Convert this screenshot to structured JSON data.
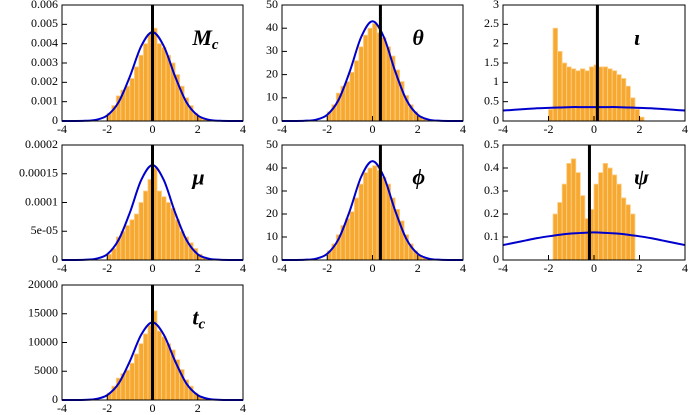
{
  "chart_data": [
    {
      "type": "histogram",
      "label": "M",
      "label_sub": "c",
      "bins": [
        -2,
        -1.8,
        -1.6,
        -1.4,
        -1.2,
        -1,
        -0.8,
        -0.6,
        -0.4,
        -0.2,
        0,
        0.2,
        0.4,
        0.6,
        0.8,
        1,
        1.2,
        1.4,
        1.6,
        1.8,
        2,
        2.2,
        2.4
      ],
      "values": [
        0.0004,
        0.0008,
        0.0013,
        0.0016,
        0.0018,
        0.0022,
        0.0028,
        0.0034,
        0.004,
        0.0045,
        0.0048,
        0.004,
        0.0038,
        0.0034,
        0.003,
        0.0024,
        0.0018,
        0.0012,
        0.0008,
        0.0004,
        0.0002,
        0.0001
      ],
      "color": "#f7a830",
      "line": {
        "x": [
          -4,
          -3.5,
          -3,
          -2.5,
          -2,
          -1.5,
          -1,
          -0.5,
          0,
          0.5,
          1,
          1.5,
          2,
          2.5,
          3,
          3.5,
          4
        ],
        "values": [
          0,
          1e-06,
          1e-05,
          6e-05,
          0.00029,
          0.00097,
          0.0023,
          0.00387,
          0.0046,
          0.00387,
          0.0023,
          0.00097,
          0.00029,
          6e-05,
          1e-05,
          1e-06,
          0
        ],
        "color": "#0000cc"
      },
      "marker_x": 0,
      "xlim": [
        -4,
        4
      ],
      "xticks": [
        -4,
        -2,
        0,
        2,
        4
      ],
      "ylim": [
        0,
        0.006
      ],
      "yticks": [
        0,
        0.001,
        0.002,
        0.003,
        0.004,
        0.005,
        0.006
      ]
    },
    {
      "type": "histogram",
      "label": "θ",
      "bins": [
        -2,
        -1.8,
        -1.6,
        -1.4,
        -1.2,
        -1,
        -0.8,
        -0.6,
        -0.4,
        -0.2,
        0,
        0.2,
        0.4,
        0.6,
        0.8,
        1,
        1.2,
        1.4,
        1.6,
        1.8,
        2,
        2.2,
        2.4
      ],
      "values": [
        4,
        7,
        12,
        15,
        17,
        21,
        26,
        32,
        37,
        40,
        42,
        38,
        36,
        32,
        28,
        22,
        17,
        11,
        7,
        4,
        2,
        1
      ],
      "color": "#f7a830",
      "line": {
        "x": [
          -4,
          -3.5,
          -3,
          -2.5,
          -2,
          -1.5,
          -1,
          -0.5,
          0,
          0.5,
          1,
          1.5,
          2,
          2.5,
          3,
          3.5,
          4
        ],
        "values": [
          0,
          0.01,
          0.09,
          0.57,
          2.7,
          9.1,
          21.5,
          36.2,
          43,
          36.2,
          21.5,
          9.1,
          2.7,
          0.57,
          0.09,
          0.01,
          0
        ],
        "color": "#0000cc"
      },
      "marker_x": 0.35,
      "xlim": [
        -4,
        4
      ],
      "xticks": [
        -4,
        -2,
        0,
        2,
        4
      ],
      "ylim": [
        0,
        50
      ],
      "yticks": [
        0,
        10,
        20,
        30,
        40,
        50
      ]
    },
    {
      "type": "histogram",
      "label": "ι",
      "bins": [
        -2,
        -1.8,
        -1.6,
        -1.4,
        -1.2,
        -1,
        -0.8,
        -0.6,
        -0.4,
        -0.2,
        0,
        0.2,
        0.4,
        0.6,
        0.8,
        1,
        1.2,
        1.4,
        1.6,
        1.8,
        2,
        2.2,
        2.4
      ],
      "values": [
        0.3,
        2.4,
        1.8,
        1.5,
        1.4,
        1.35,
        1.3,
        1.35,
        1.3,
        1.4,
        1.45,
        1.4,
        1.4,
        1.35,
        1.3,
        1.2,
        1.1,
        0.9,
        0.6,
        0.3,
        0.1,
        0
      ],
      "color": "#f7a830",
      "line": {
        "x": [
          -4,
          -3.5,
          -3,
          -2.5,
          -2,
          -1.5,
          -1,
          -0.5,
          0,
          0.5,
          1,
          1.5,
          2,
          2.5,
          3,
          3.5,
          4
        ],
        "values": [
          0.27,
          0.29,
          0.31,
          0.33,
          0.34,
          0.35,
          0.36,
          0.36,
          0.36,
          0.36,
          0.36,
          0.35,
          0.34,
          0.33,
          0.31,
          0.29,
          0.27
        ],
        "color": "#0000cc"
      },
      "marker_x": 0.15,
      "xlim": [
        -4,
        4
      ],
      "xticks": [
        -4,
        -2,
        0,
        2,
        4
      ],
      "ylim": [
        0,
        3
      ],
      "yticks": [
        0,
        0.5,
        1,
        1.5,
        2,
        2.5,
        3
      ]
    },
    {
      "type": "histogram",
      "label": "μ",
      "bins": [
        -2,
        -1.8,
        -1.6,
        -1.4,
        -1.2,
        -1,
        -0.8,
        -0.6,
        -0.4,
        -0.2,
        0,
        0.2,
        0.4,
        0.6,
        0.8,
        1,
        1.2,
        1.4,
        1.6,
        1.8,
        2,
        2.2,
        2.4
      ],
      "values": [
        1e-05,
        2e-05,
        4e-05,
        5e-05,
        6e-05,
        7e-05,
        8e-05,
        0.0001,
        0.00012,
        0.00014,
        0.00016,
        0.00012,
        0.00011,
        0.0001,
        9e-05,
        7e-05,
        5e-05,
        4e-05,
        3e-05,
        2e-05,
        1e-05,
        5e-06
      ],
      "color": "#f7a830",
      "line": {
        "x": [
          -4,
          -3.5,
          -3,
          -2.5,
          -2,
          -1.5,
          -1,
          -0.5,
          0,
          0.5,
          1,
          1.5,
          2,
          2.5,
          3,
          3.5,
          4
        ],
        "values": [
          0,
          4e-08,
          4e-07,
          2.2e-06,
          1e-05,
          3.5e-05,
          8.25e-05,
          0.000139,
          0.000165,
          0.000139,
          8.25e-05,
          3.5e-05,
          1e-05,
          2.2e-06,
          4e-07,
          4e-08,
          0
        ],
        "color": "#0000cc"
      },
      "marker_x": 0,
      "xlim": [
        -4,
        4
      ],
      "xticks": [
        -4,
        -2,
        0,
        2,
        4
      ],
      "ylim": [
        0,
        0.0002
      ],
      "yticks": [
        0,
        {
          "value": 5e-05,
          "label": "5e-05"
        },
        0.0001,
        0.00015,
        0.0002
      ]
    },
    {
      "type": "histogram",
      "label": "ϕ",
      "bins": [
        -2,
        -1.8,
        -1.6,
        -1.4,
        -1.2,
        -1,
        -0.8,
        -0.6,
        -0.4,
        -0.2,
        0,
        0.2,
        0.4,
        0.6,
        0.8,
        1,
        1.2,
        1.4,
        1.6,
        1.8,
        2,
        2.2,
        2.4
      ],
      "values": [
        4,
        7,
        11,
        15,
        18,
        21,
        27,
        33,
        38,
        40,
        41,
        39,
        36,
        33,
        27,
        22,
        17,
        11,
        7,
        4,
        2,
        1
      ],
      "color": "#f7a830",
      "line": {
        "x": [
          -4,
          -3.5,
          -3,
          -2.5,
          -2,
          -1.5,
          -1,
          -0.5,
          0,
          0.5,
          1,
          1.5,
          2,
          2.5,
          3,
          3.5,
          4
        ],
        "values": [
          0,
          0.01,
          0.09,
          0.57,
          2.7,
          9.1,
          21.5,
          36.2,
          43,
          36.2,
          21.5,
          9.1,
          2.7,
          0.57,
          0.09,
          0.01,
          0
        ],
        "color": "#0000cc"
      },
      "marker_x": 0.35,
      "xlim": [
        -4,
        4
      ],
      "xticks": [
        -4,
        -2,
        0,
        2,
        4
      ],
      "ylim": [
        0,
        50
      ],
      "yticks": [
        0,
        10,
        20,
        30,
        40,
        50
      ]
    },
    {
      "type": "histogram",
      "label": "ψ",
      "bins": [
        -2,
        -1.8,
        -1.6,
        -1.4,
        -1.2,
        -1,
        -0.8,
        -0.6,
        -0.4,
        -0.2,
        0,
        0.2,
        0.4,
        0.6,
        0.8,
        1,
        1.2,
        1.4,
        1.6,
        1.8,
        2,
        2.2,
        2.4
      ],
      "values": [
        0,
        0.2,
        0.25,
        0.33,
        0.42,
        0.44,
        0.38,
        0.28,
        0.18,
        0.22,
        0.33,
        0.38,
        0.42,
        0.4,
        0.37,
        0.33,
        0.27,
        0.24,
        0.2,
        0,
        0,
        0
      ],
      "color": "#f7a830",
      "line": {
        "x": [
          -4,
          -3.5,
          -3,
          -2.5,
          -2,
          -1.5,
          -1,
          -0.5,
          0,
          0.5,
          1,
          1.5,
          2,
          2.5,
          3,
          3.5,
          4
        ],
        "values": [
          0.065,
          0.075,
          0.085,
          0.095,
          0.103,
          0.11,
          0.115,
          0.118,
          0.12,
          0.118,
          0.115,
          0.11,
          0.103,
          0.095,
          0.085,
          0.075,
          0.065
        ],
        "color": "#0000cc"
      },
      "marker_x": -0.2,
      "xlim": [
        -4,
        4
      ],
      "xticks": [
        -4,
        -2,
        0,
        2,
        4
      ],
      "ylim": [
        0,
        0.5
      ],
      "yticks": [
        0,
        0.1,
        0.2,
        0.3,
        0.4,
        0.5
      ]
    },
    {
      "type": "histogram",
      "label": "t",
      "label_sub": "c",
      "bins": [
        -2,
        -1.8,
        -1.6,
        -1.4,
        -1.2,
        -1,
        -0.8,
        -0.6,
        -0.4,
        -0.2,
        0,
        0.2,
        0.4,
        0.6,
        0.8,
        1,
        1.2,
        1.4,
        1.6,
        1.8,
        2,
        2.2,
        2.4
      ],
      "values": [
        1200,
        2400,
        3800,
        4600,
        5200,
        6400,
        8000,
        9800,
        11500,
        13000,
        15500,
        12000,
        11000,
        9800,
        8700,
        7000,
        5300,
        3500,
        2400,
        1200,
        600,
        300
      ],
      "color": "#f7a830",
      "line": {
        "x": [
          -4,
          -3.5,
          -3,
          -2.5,
          -2,
          -1.5,
          -1,
          -0.5,
          0,
          0.5,
          1,
          1.5,
          2,
          2.5,
          3,
          3.5,
          4
        ],
        "values": [
          0,
          3,
          30,
          180,
          850,
          2850,
          6750,
          11350,
          13500,
          11350,
          6750,
          2850,
          850,
          180,
          30,
          3,
          0
        ],
        "color": "#0000cc"
      },
      "marker_x": 0,
      "xlim": [
        -4,
        4
      ],
      "xticks": [
        -4,
        -2,
        0,
        2,
        4
      ],
      "ylim": [
        0,
        20000
      ],
      "yticks": [
        0,
        5000,
        10000,
        15000,
        20000
      ]
    }
  ]
}
